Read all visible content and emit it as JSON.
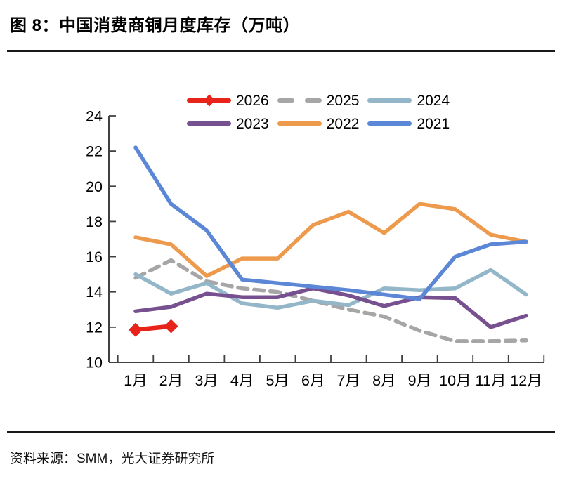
{
  "title": "图 8：中国消费商铜月度库存（万吨）",
  "source": "资料来源：SMM，光大证券研究所",
  "chart_data": {
    "type": "line",
    "title": "中国消费商铜月度库存（万吨）",
    "xlabel": "",
    "ylabel": "",
    "categories": [
      "1月",
      "2月",
      "3月",
      "4月",
      "5月",
      "6月",
      "7月",
      "8月",
      "9月",
      "10月",
      "11月",
      "12月"
    ],
    "ylim": [
      10,
      24
    ],
    "ytick_step": 2,
    "grid": false,
    "legend_position": "top",
    "axis_color": "#404040",
    "series": [
      {
        "name": "2026",
        "color": "#e8231a",
        "style": "solid",
        "marker": "diamond",
        "values": [
          11.85,
          12.05
        ]
      },
      {
        "name": "2025",
        "color": "#a6a6a6",
        "style": "dashed",
        "marker": "none",
        "values": [
          14.8,
          15.8,
          14.6,
          14.2,
          14.0,
          13.5,
          13.0,
          12.6,
          11.8,
          11.2,
          11.2,
          11.25
        ]
      },
      {
        "name": "2024",
        "color": "#93b7c9",
        "style": "solid",
        "marker": "none",
        "values": [
          15.0,
          13.9,
          14.5,
          13.35,
          13.1,
          13.5,
          13.25,
          14.2,
          14.1,
          14.2,
          15.25,
          13.85
        ]
      },
      {
        "name": "2023",
        "color": "#77518f",
        "style": "solid",
        "marker": "none",
        "values": [
          12.9,
          13.15,
          13.9,
          13.7,
          13.7,
          14.2,
          13.8,
          13.2,
          13.7,
          13.65,
          12.0,
          12.65
        ]
      },
      {
        "name": "2022",
        "color": "#ee9a4d",
        "style": "solid",
        "marker": "none",
        "values": [
          17.1,
          16.7,
          14.9,
          15.9,
          15.9,
          17.8,
          18.55,
          17.35,
          19.0,
          18.7,
          17.25,
          16.85
        ]
      },
      {
        "name": "2021",
        "color": "#5b87d6",
        "style": "solid",
        "marker": "none",
        "values": [
          22.2,
          19.0,
          17.5,
          14.7,
          14.5,
          14.3,
          14.1,
          13.85,
          13.6,
          16.0,
          16.7,
          16.85
        ]
      }
    ]
  }
}
